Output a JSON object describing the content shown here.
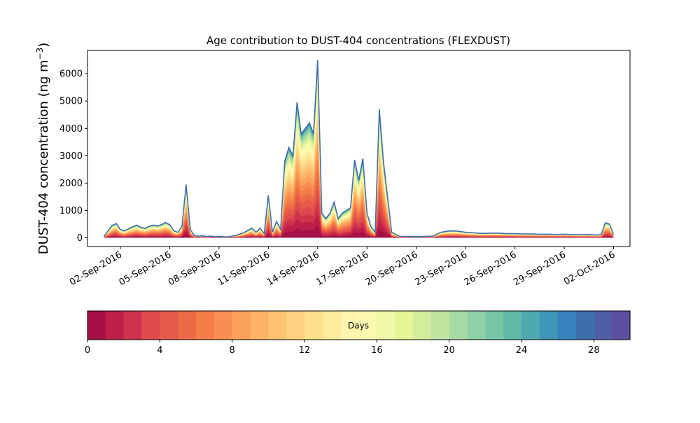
{
  "chart_data": {
    "type": "area",
    "title": "Age contribution to DUST-404 concentrations (FLEXDUST)",
    "ylabel_main": "DUST-404 concentration (ng m",
    "ylabel_sup": "−3",
    "ylabel_close": ")",
    "xlabel": "",
    "ylim": [
      -320,
      6850
    ],
    "yticks": [
      0,
      1000,
      2000,
      3000,
      4000,
      5000,
      6000
    ],
    "yticklabels": [
      "0",
      "1000",
      "2000",
      "3000",
      "4000",
      "5000",
      "6000"
    ],
    "xlim": [
      "2016-08-31T00:00",
      "2016-10-03T00:00"
    ],
    "xticks": [
      "2016-09-02",
      "2016-09-05",
      "2016-09-08",
      "2016-09-11",
      "2016-09-14",
      "2016-09-17",
      "2016-09-20",
      "2016-09-23",
      "2016-09-26",
      "2016-09-29",
      "2016-10-02"
    ],
    "xticklabels": [
      "02-Sep-2016",
      "05-Sep-2016",
      "08-Sep-2016",
      "11-Sep-2016",
      "14-Sep-2016",
      "17-Sep-2016",
      "20-Sep-2016",
      "23-Sep-2016",
      "26-Sep-2016",
      "29-Sep-2016",
      "02-Oct-2016"
    ],
    "age_bins_days": 30,
    "total_concentration": {
      "x": [
        "2016-09-01T00:00",
        "2016-09-01T06:00",
        "2016-09-01T12:00",
        "2016-09-01T18:00",
        "2016-09-02T00:00",
        "2016-09-02T06:00",
        "2016-09-02T12:00",
        "2016-09-02T18:00",
        "2016-09-03T00:00",
        "2016-09-03T06:00",
        "2016-09-03T12:00",
        "2016-09-03T18:00",
        "2016-09-04T00:00",
        "2016-09-04T06:00",
        "2016-09-04T12:00",
        "2016-09-04T18:00",
        "2016-09-05T00:00",
        "2016-09-05T06:00",
        "2016-09-05T12:00",
        "2016-09-05T18:00",
        "2016-09-06T00:00",
        "2016-09-06T06:00",
        "2016-09-06T12:00",
        "2016-09-06T18:00",
        "2016-09-07T00:00",
        "2016-09-07T06:00",
        "2016-09-07T12:00",
        "2016-09-07T18:00",
        "2016-09-08T00:00",
        "2016-09-08T12:00",
        "2016-09-09T00:00",
        "2016-09-09T12:00",
        "2016-09-10T00:00",
        "2016-09-10T06:00",
        "2016-09-10T12:00",
        "2016-09-10T18:00",
        "2016-09-11T00:00",
        "2016-09-11T06:00",
        "2016-09-11T12:00",
        "2016-09-11T18:00",
        "2016-09-12T00:00",
        "2016-09-12T06:00",
        "2016-09-12T12:00",
        "2016-09-12T18:00",
        "2016-09-13T00:00",
        "2016-09-13T06:00",
        "2016-09-13T12:00",
        "2016-09-13T18:00",
        "2016-09-14T00:00",
        "2016-09-14T06:00",
        "2016-09-14T12:00",
        "2016-09-14T18:00",
        "2016-09-15T00:00",
        "2016-09-15T06:00",
        "2016-09-15T12:00",
        "2016-09-15T18:00",
        "2016-09-16T00:00",
        "2016-09-16T06:00",
        "2016-09-16T12:00",
        "2016-09-16T18:00",
        "2016-09-17T00:00",
        "2016-09-17T06:00",
        "2016-09-17T12:00",
        "2016-09-17T18:00",
        "2016-09-18T00:00",
        "2016-09-18T12:00",
        "2016-09-19T00:00",
        "2016-09-19T12:00",
        "2016-09-20T00:00",
        "2016-09-20T12:00",
        "2016-09-21T00:00",
        "2016-09-21T12:00",
        "2016-09-22T00:00",
        "2016-09-22T12:00",
        "2016-09-23T00:00",
        "2016-09-23T12:00",
        "2016-09-24T00:00",
        "2016-09-24T12:00",
        "2016-09-25T00:00",
        "2016-09-25T12:00",
        "2016-09-26T00:00",
        "2016-09-26T12:00",
        "2016-09-27T00:00",
        "2016-09-27T12:00",
        "2016-09-28T00:00",
        "2016-09-28T12:00",
        "2016-09-29T00:00",
        "2016-09-29T12:00",
        "2016-09-30T00:00",
        "2016-09-30T12:00",
        "2016-10-01T00:00",
        "2016-10-01T06:00",
        "2016-10-01T12:00",
        "2016-10-01T18:00",
        "2016-10-02T00:00"
      ],
      "y": [
        50,
        250,
        450,
        520,
        300,
        250,
        330,
        400,
        460,
        380,
        340,
        420,
        460,
        430,
        480,
        560,
        480,
        250,
        200,
        420,
        1950,
        300,
        80,
        60,
        70,
        50,
        60,
        40,
        50,
        30,
        80,
        180,
        350,
        200,
        350,
        150,
        1550,
        200,
        600,
        300,
        2800,
        3300,
        3000,
        4950,
        3800,
        4000,
        4200,
        3800,
        6500,
        900,
        700,
        900,
        1300,
        700,
        900,
        1000,
        1100,
        2850,
        2100,
        2900,
        900,
        400,
        200,
        4700,
        2800,
        200,
        50,
        50,
        40,
        50,
        60,
        200,
        250,
        240,
        200,
        180,
        160,
        170,
        170,
        150,
        150,
        140,
        140,
        130,
        130,
        120,
        130,
        120,
        110,
        120,
        100,
        120,
        550,
        500,
        120
      ]
    },
    "colorbar": {
      "label": "Days",
      "ticks": [
        0,
        4,
        8,
        12,
        16,
        20,
        24,
        28
      ],
      "ticklabels": [
        "0",
        "4",
        "8",
        "12",
        "16",
        "20",
        "24",
        "28"
      ],
      "range": [
        0,
        30
      ],
      "colors": [
        "#a50f45",
        "#be1f48",
        "#cf334c",
        "#de4a4d",
        "#e55a4a",
        "#ec6a46",
        "#f47d48",
        "#f88e52",
        "#fca05d",
        "#fdb265",
        "#fdc272",
        "#fed07f",
        "#fee08b",
        "#feeb9d",
        "#fff5ae",
        "#fbf8b0",
        "#f1f9a8",
        "#e6f598",
        "#d2ed9c",
        "#bde5a0",
        "#a7dba4",
        "#8ed1a4",
        "#76c6a5",
        "#62b9a8",
        "#4fa9b1",
        "#3f96b7",
        "#3681ba",
        "#3f6eaf",
        "#4e5ea8",
        "#5e4fa2"
      ]
    }
  }
}
